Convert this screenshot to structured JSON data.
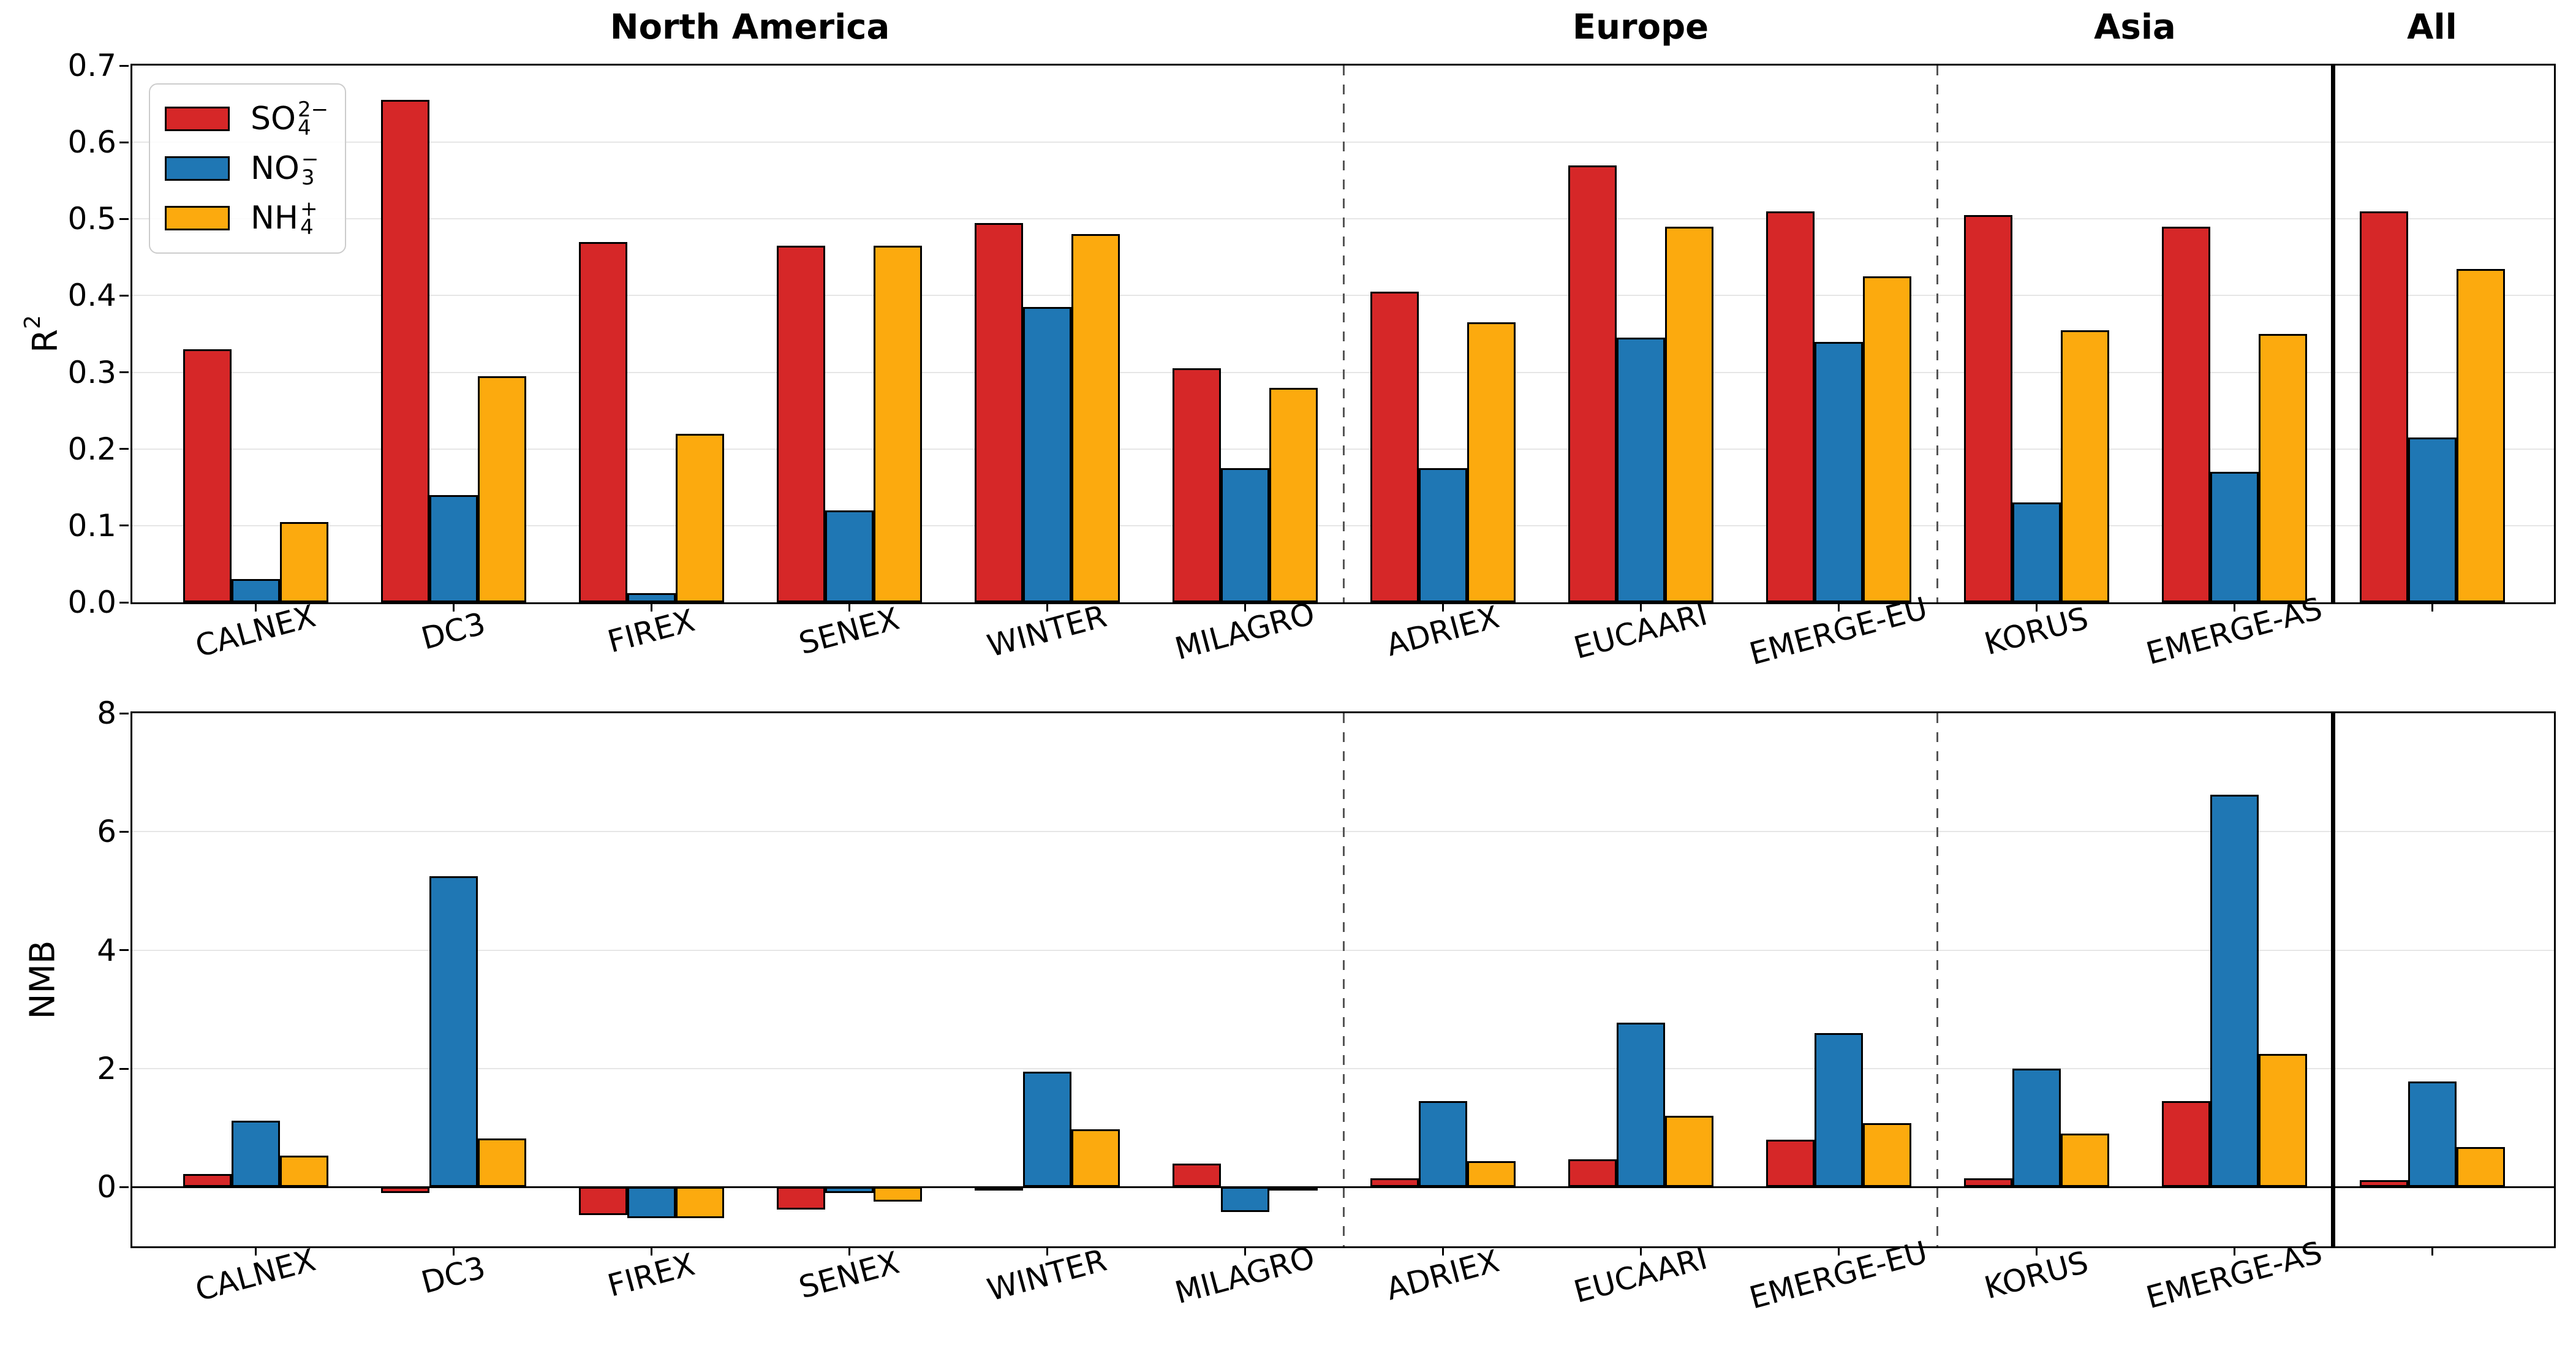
{
  "figure": {
    "background": "#ffffff"
  },
  "regions": [
    {
      "label": "North America",
      "category_start": 0,
      "category_end": 5
    },
    {
      "label": "Europe",
      "category_start": 6,
      "category_end": 8
    },
    {
      "label": "Asia",
      "category_start": 9,
      "category_end": 10
    },
    {
      "label": "All",
      "category_start": 11,
      "category_end": 11
    }
  ],
  "separators": {
    "dashed_after_category_index": [
      5,
      8
    ],
    "solid_after_category_index": [
      10
    ]
  },
  "ylabels": {
    "r2": {
      "base": "R",
      "sup": "2"
    },
    "nmb": "NMB"
  },
  "legend": {
    "entries": [
      {
        "label_plain": "SO₄²⁻",
        "base": "SO",
        "sup": "2−",
        "sub": "4",
        "color": "#d62728"
      },
      {
        "label_plain": "NO₃⁻",
        "base": "NO",
        "sup": "−",
        "sub": "3",
        "color": "#1f77b4"
      },
      {
        "label_plain": "NH₄⁺",
        "base": "NH",
        "sup": "+",
        "sub": "4",
        "color": "#fcaa0e"
      }
    ]
  },
  "chart_data": [
    {
      "type": "bar",
      "panel": "top",
      "ylabel": "R²",
      "ylim": [
        0.0,
        0.7
      ],
      "yticks": [
        0.0,
        0.1,
        0.2,
        0.3,
        0.4,
        0.5,
        0.6,
        0.7
      ],
      "ytick_labels": [
        "0.0",
        "0.1",
        "0.2",
        "0.3",
        "0.4",
        "0.5",
        "0.6",
        "0.7"
      ],
      "grid": true,
      "legend_position": "upper left",
      "categories": [
        "CALNEX",
        "DC3",
        "FIREX",
        "SENEX",
        "WINTER",
        "MILAGRO",
        "ADRIEX",
        "EUCAARI",
        "EMERGE-EU",
        "KORUS",
        "EMERGE-AS",
        "All"
      ],
      "category_tick_labels": [
        "CALNEX",
        "DC3",
        "FIREX",
        "SENEX",
        "WINTER",
        "MILAGRO",
        "ADRIEX",
        "EUCAARI",
        "EMERGE-EU",
        "KORUS",
        "EMERGE-AS",
        ""
      ],
      "series": [
        {
          "name": "SO₄²⁻",
          "key": "so4",
          "color": "#d62728",
          "values": [
            0.33,
            0.655,
            0.47,
            0.465,
            0.495,
            0.305,
            0.405,
            0.57,
            0.51,
            0.505,
            0.49,
            0.51
          ]
        },
        {
          "name": "NO₃⁻",
          "key": "no3",
          "color": "#1f77b4",
          "values": [
            0.03,
            0.14,
            0.012,
            0.12,
            0.385,
            0.175,
            0.175,
            0.345,
            0.34,
            0.13,
            0.17,
            0.215
          ]
        },
        {
          "name": "NH₄⁺",
          "key": "nh4",
          "color": "#fcaa0e",
          "values": [
            0.105,
            0.295,
            0.22,
            0.465,
            0.48,
            0.28,
            0.365,
            0.49,
            0.425,
            0.355,
            0.35,
            0.435
          ]
        }
      ]
    },
    {
      "type": "bar",
      "panel": "bottom",
      "ylabel": "NMB",
      "ylim": [
        -1.0,
        8.0
      ],
      "yticks": [
        0,
        2,
        4,
        6,
        8
      ],
      "ytick_labels": [
        "0",
        "2",
        "4",
        "6",
        "8"
      ],
      "grid": true,
      "zero_line": true,
      "categories": [
        "CALNEX",
        "DC3",
        "FIREX",
        "SENEX",
        "WINTER",
        "MILAGRO",
        "ADRIEX",
        "EUCAARI",
        "EMERGE-EU",
        "KORUS",
        "EMERGE-AS",
        "All"
      ],
      "category_tick_labels": [
        "CALNEX",
        "DC3",
        "FIREX",
        "SENEX",
        "WINTER",
        "MILAGRO",
        "ADRIEX",
        "EUCAARI",
        "EMERGE-EU",
        "KORUS",
        "EMERGE-AS",
        ""
      ],
      "series": [
        {
          "name": "SO₄²⁻",
          "key": "so4",
          "color": "#d62728",
          "values": [
            0.22,
            -0.1,
            -0.47,
            -0.38,
            -0.05,
            0.4,
            0.15,
            0.47,
            0.8,
            0.15,
            1.45,
            0.12
          ]
        },
        {
          "name": "NO₃⁻",
          "key": "no3",
          "color": "#1f77b4",
          "values": [
            1.12,
            5.25,
            -0.52,
            -0.1,
            1.95,
            -0.42,
            1.45,
            2.78,
            2.6,
            2.0,
            6.62,
            1.78
          ]
        },
        {
          "name": "NH₄⁺",
          "key": "nh4",
          "color": "#fcaa0e",
          "values": [
            0.53,
            0.82,
            -0.52,
            -0.25,
            0.98,
            -0.05,
            0.44,
            1.2,
            1.08,
            0.9,
            2.25,
            0.68
          ]
        }
      ]
    }
  ]
}
